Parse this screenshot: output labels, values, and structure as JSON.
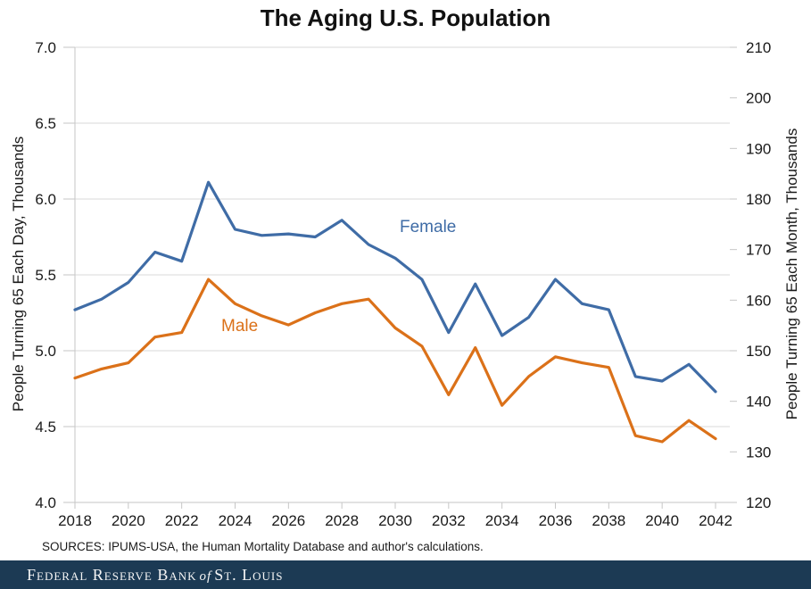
{
  "title": "The Aging U.S. Population",
  "chart_data": {
    "type": "line",
    "title": "The Aging U.S. Population",
    "x": [
      2018,
      2019,
      2020,
      2021,
      2022,
      2023,
      2024,
      2025,
      2026,
      2027,
      2028,
      2029,
      2030,
      2031,
      2032,
      2033,
      2034,
      2035,
      2036,
      2037,
      2038,
      2039,
      2040,
      2041,
      2042
    ],
    "series": [
      {
        "name": "Female",
        "color": "#3F6CA6",
        "values": [
          5.27,
          5.34,
          5.45,
          5.65,
          5.59,
          6.11,
          5.8,
          5.76,
          5.77,
          5.75,
          5.86,
          5.7,
          5.61,
          5.47,
          5.12,
          5.44,
          5.1,
          5.22,
          5.47,
          5.31,
          5.27,
          4.83,
          4.8,
          4.91,
          4.73
        ]
      },
      {
        "name": "Male",
        "color": "#DB7119",
        "values": [
          4.82,
          4.88,
          4.92,
          5.09,
          5.12,
          5.47,
          5.31,
          5.23,
          5.17,
          5.25,
          5.31,
          5.34,
          5.15,
          5.03,
          4.71,
          5.02,
          4.64,
          4.83,
          4.96,
          4.92,
          4.89,
          4.44,
          4.4,
          4.54,
          4.42
        ]
      }
    ],
    "xlabel": "",
    "ylabel_left": "People Turning 65 Each Day, Thousands",
    "ylabel_right": "People Turning 65 Each Month, Thousands",
    "ylim_left": [
      4.0,
      7.0
    ],
    "ylim_right": [
      120,
      210
    ],
    "left_ticks": [
      "7.0",
      "6.5",
      "6.0",
      "5.5",
      "5.0",
      "4.5",
      "4.0"
    ],
    "right_ticks": [
      "210",
      "200",
      "190",
      "180",
      "170",
      "160",
      "150",
      "140",
      "130",
      "120"
    ],
    "x_ticks": [
      2018,
      2020,
      2022,
      2024,
      2026,
      2028,
      2030,
      2032,
      2034,
      2036,
      2038,
      2040,
      2042
    ],
    "grid": "horizontal",
    "legend": "inline-series-labels"
  },
  "series_labels": {
    "female": "Female",
    "male": "Male"
  },
  "source_note": "SOURCES: IPUMS-USA, the Human Mortality Database and author's calculations.",
  "footer": {
    "text_main": "Federal Reserve Bank",
    "text_of": "of",
    "text_suffix": "St. Louis"
  },
  "colors": {
    "female": "#3F6CA6",
    "male": "#DB7119",
    "footer_bg": "#1C3A54",
    "grid": "#DADADA",
    "axis": "#C6C6C6"
  }
}
